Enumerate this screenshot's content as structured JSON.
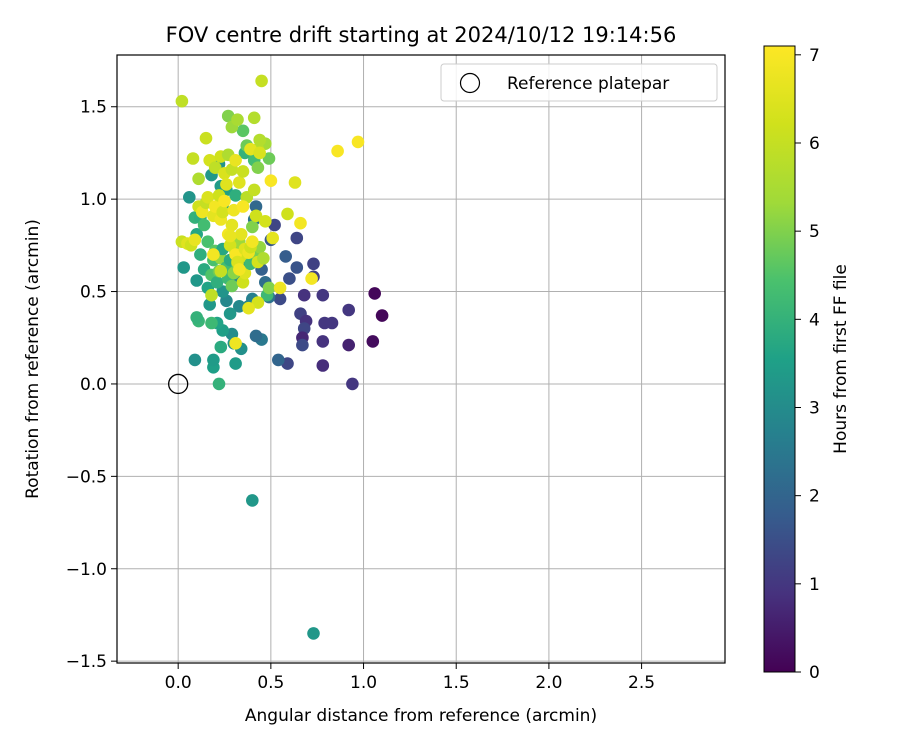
{
  "chart_data": {
    "type": "scatter",
    "title": "FOV centre drift starting at 2024/10/12 19:14:56",
    "xlabel": "Angular distance from reference (arcmin)",
    "ylabel": "Rotation from reference (arcmin)",
    "xlim": [
      -0.33,
      2.95
    ],
    "ylim": [
      -1.51,
      1.78
    ],
    "xticks": [
      0.0,
      0.5,
      1.0,
      1.5,
      2.0,
      2.5
    ],
    "xtick_labels": [
      "0.0",
      "0.5",
      "1.0",
      "1.5",
      "2.0",
      "2.5"
    ],
    "yticks": [
      -1.5,
      -1.0,
      -0.5,
      0.0,
      0.5,
      1.0,
      1.5
    ],
    "ytick_labels": [
      "−1.5",
      "−1.0",
      "−0.5",
      "0.0",
      "0.5",
      "1.0",
      "1.5"
    ],
    "grid": true,
    "legend": {
      "position": "top-right",
      "entries": [
        {
          "label": "Reference platepar",
          "marker": "open-circle",
          "x": 0.0,
          "y": 0.0
        }
      ]
    },
    "colorbar": {
      "label": "Hours from first FF file",
      "min": 0,
      "max": 7.1,
      "ticks": [
        0,
        1,
        2,
        3,
        4,
        5,
        6,
        7
      ],
      "tick_labels": [
        "0",
        "1",
        "2",
        "3",
        "4",
        "5",
        "6",
        "7"
      ],
      "colormap": "viridis"
    },
    "points": [
      [
        1.06,
        0.49,
        0.1
      ],
      [
        1.1,
        0.37,
        0.1
      ],
      [
        1.05,
        0.23,
        0.2
      ],
      [
        0.94,
        0.0,
        1.0
      ],
      [
        0.92,
        0.21,
        0.6
      ],
      [
        0.92,
        0.4,
        1.0
      ],
      [
        0.78,
        0.48,
        1.0
      ],
      [
        0.79,
        0.33,
        1.0
      ],
      [
        0.83,
        0.33,
        1.0
      ],
      [
        0.78,
        0.23,
        0.9
      ],
      [
        0.78,
        0.1,
        0.8
      ],
      [
        0.73,
        0.65,
        1.2
      ],
      [
        0.73,
        0.58,
        1.2
      ],
      [
        0.68,
        0.48,
        0.9
      ],
      [
        0.66,
        0.38,
        1.2
      ],
      [
        0.69,
        0.34,
        0.9
      ],
      [
        0.68,
        0.3,
        1.3
      ],
      [
        0.67,
        0.25,
        0.7
      ],
      [
        0.67,
        0.21,
        1.4
      ],
      [
        0.64,
        0.63,
        1.6
      ],
      [
        0.64,
        0.79,
        1.3
      ],
      [
        0.6,
        0.57,
        1.5
      ],
      [
        0.59,
        0.11,
        1.3
      ],
      [
        0.58,
        0.69,
        1.8
      ],
      [
        0.54,
        0.13,
        2.0
      ],
      [
        0.55,
        0.46,
        1.4
      ],
      [
        0.52,
        0.86,
        1.3
      ],
      [
        0.5,
        0.78,
        1.7
      ],
      [
        0.49,
        0.47,
        2.3
      ],
      [
        0.47,
        0.55,
        2.2
      ],
      [
        0.45,
        0.62,
        1.9
      ],
      [
        0.45,
        0.24,
        2.5
      ],
      [
        0.42,
        0.26,
        2.2
      ],
      [
        0.42,
        0.96,
        2.1
      ],
      [
        0.41,
        0.89,
        2.4
      ],
      [
        0.4,
        0.46,
        2.7
      ],
      [
        0.38,
        0.42,
        2.8
      ],
      [
        0.35,
        0.64,
        2.9
      ],
      [
        0.33,
        0.56,
        3.0
      ],
      [
        0.33,
        0.42,
        2.9
      ],
      [
        0.34,
        0.19,
        3.1
      ],
      [
        0.31,
        0.11,
        3.4
      ],
      [
        0.3,
        0.22,
        3.2
      ],
      [
        0.29,
        0.27,
        3.0
      ],
      [
        0.28,
        0.38,
        3.3
      ],
      [
        0.26,
        0.45,
        2.9
      ],
      [
        0.24,
        0.5,
        3.2
      ],
      [
        0.24,
        0.29,
        3.5
      ],
      [
        0.23,
        0.2,
        3.8
      ],
      [
        0.22,
        0.0,
        4.0
      ],
      [
        0.19,
        0.09,
        3.5
      ],
      [
        0.19,
        0.13,
        3.4
      ],
      [
        0.21,
        0.33,
        3.6
      ],
      [
        0.18,
        0.33,
        4.2
      ],
      [
        0.17,
        0.43,
        3.3
      ],
      [
        0.16,
        0.52,
        3.6
      ],
      [
        0.14,
        0.62,
        3.8
      ],
      [
        0.12,
        0.7,
        3.9
      ],
      [
        0.1,
        0.56,
        3.3
      ],
      [
        0.09,
        0.13,
        3.1
      ],
      [
        0.11,
        0.34,
        4.1
      ],
      [
        0.1,
        0.36,
        4.0
      ],
      [
        0.03,
        0.63,
        3.3
      ],
      [
        0.06,
        1.01,
        3.2
      ],
      [
        0.09,
        0.9,
        4.0
      ],
      [
        0.1,
        0.81,
        3.7
      ],
      [
        0.12,
        0.9,
        3.9
      ],
      [
        0.14,
        0.86,
        4.3
      ],
      [
        0.16,
        0.77,
        4.4
      ],
      [
        0.18,
        0.59,
        4.5
      ],
      [
        0.19,
        0.67,
        4.4
      ],
      [
        0.2,
        0.72,
        4.6
      ],
      [
        0.21,
        0.55,
        3.9
      ],
      [
        0.22,
        0.61,
        4.8
      ],
      [
        0.23,
        0.68,
        5.2
      ],
      [
        0.24,
        0.73,
        3.7
      ],
      [
        0.26,
        0.63,
        4.3
      ],
      [
        0.27,
        0.57,
        4.2
      ],
      [
        0.28,
        0.67,
        3.8
      ],
      [
        0.29,
        0.53,
        4.8
      ],
      [
        0.3,
        0.6,
        5.1
      ],
      [
        0.31,
        0.71,
        5.2
      ],
      [
        0.32,
        0.65,
        4.9
      ],
      [
        0.33,
        0.77,
        5.3
      ],
      [
        0.35,
        0.55,
        6.2
      ],
      [
        0.36,
        0.6,
        6.5
      ],
      [
        0.37,
        0.69,
        6.3
      ],
      [
        0.38,
        0.73,
        5.9
      ],
      [
        0.39,
        0.65,
        4.2
      ],
      [
        0.4,
        0.85,
        5.0
      ],
      [
        0.41,
        0.71,
        4.9
      ],
      [
        0.43,
        0.66,
        6.3
      ],
      [
        0.44,
        0.74,
        5.2
      ],
      [
        0.46,
        0.68,
        5.6
      ],
      [
        0.48,
        0.48,
        4.2
      ],
      [
        0.49,
        0.52,
        5.0
      ],
      [
        0.22,
        1.19,
        3.2
      ],
      [
        0.18,
        1.13,
        3.3
      ],
      [
        0.23,
        1.07,
        3.4
      ],
      [
        0.26,
        1.05,
        3.5
      ],
      [
        0.24,
        0.97,
        3.6
      ],
      [
        0.31,
        1.02,
        3.9
      ],
      [
        0.36,
        1.25,
        4.0
      ],
      [
        0.35,
        1.37,
        4.6
      ],
      [
        0.37,
        1.29,
        4.8
      ],
      [
        0.41,
        1.21,
        4.3
      ],
      [
        0.43,
        1.17,
        5.0
      ],
      [
        0.49,
        1.22,
        4.8
      ],
      [
        0.47,
        1.3,
        5.4
      ],
      [
        0.43,
        1.27,
        5.8
      ],
      [
        0.44,
        1.32,
        5.7
      ],
      [
        0.27,
        1.45,
        5.0
      ],
      [
        0.29,
        1.39,
        5.3
      ],
      [
        0.32,
        1.43,
        5.5
      ],
      [
        0.41,
        1.44,
        5.7
      ],
      [
        0.45,
        1.64,
        6.0
      ],
      [
        0.02,
        1.53,
        5.9
      ],
      [
        0.08,
        1.22,
        6.0
      ],
      [
        0.11,
        1.11,
        5.6
      ],
      [
        0.15,
        1.33,
        6.1
      ],
      [
        0.17,
        1.21,
        6.3
      ],
      [
        0.2,
        1.17,
        5.9
      ],
      [
        0.23,
        1.23,
        6.2
      ],
      [
        0.25,
        1.14,
        6.4
      ],
      [
        0.27,
        1.24,
        5.6
      ],
      [
        0.29,
        1.16,
        6.0
      ],
      [
        0.31,
        1.21,
        6.7
      ],
      [
        0.33,
        1.09,
        6.5
      ],
      [
        0.35,
        1.15,
        6.1
      ],
      [
        0.37,
        1.01,
        5.8
      ],
      [
        0.39,
        1.27,
        6.6
      ],
      [
        0.41,
        1.05,
        6.0
      ],
      [
        0.42,
        0.91,
        6.2
      ],
      [
        0.44,
        1.25,
        6.4
      ],
      [
        0.47,
        0.88,
        6.3
      ],
      [
        0.5,
        1.1,
        7.0
      ],
      [
        0.51,
        0.79,
        6.6
      ],
      [
        0.55,
        0.52,
        6.8
      ],
      [
        0.59,
        0.92,
        6.2
      ],
      [
        0.63,
        1.09,
        6.5
      ],
      [
        0.66,
        0.87,
        6.9
      ],
      [
        0.72,
        0.57,
        6.9
      ],
      [
        0.86,
        1.26,
        7.0
      ],
      [
        0.97,
        1.31,
        7.0
      ],
      [
        0.02,
        0.77,
        6.1
      ],
      [
        0.05,
        0.76,
        6.5
      ],
      [
        0.07,
        0.75,
        6.2
      ],
      [
        0.09,
        0.78,
        6.7
      ],
      [
        0.11,
        0.96,
        6.2
      ],
      [
        0.13,
        0.93,
        6.8
      ],
      [
        0.15,
        0.98,
        6.0
      ],
      [
        0.16,
        1.01,
        6.4
      ],
      [
        0.19,
        0.91,
        6.6
      ],
      [
        0.2,
        0.96,
        6.9
      ],
      [
        0.22,
        1.02,
        6.2
      ],
      [
        0.23,
        0.89,
        6.8
      ],
      [
        0.24,
        0.93,
        6.3
      ],
      [
        0.25,
        0.99,
        7.0
      ],
      [
        0.26,
        1.08,
        6.5
      ],
      [
        0.27,
        0.81,
        6.9
      ],
      [
        0.28,
        0.75,
        6.3
      ],
      [
        0.29,
        0.86,
        6.6
      ],
      [
        0.3,
        0.94,
        6.8
      ],
      [
        0.31,
        0.7,
        7.0
      ],
      [
        0.32,
        0.66,
        6.4
      ],
      [
        0.33,
        0.62,
        6.9
      ],
      [
        0.34,
        0.81,
        6.6
      ],
      [
        0.35,
        0.96,
        7.0
      ],
      [
        0.36,
        0.73,
        6.5
      ],
      [
        0.38,
        0.71,
        6.8
      ],
      [
        0.39,
        0.74,
        6.2
      ],
      [
        0.4,
        0.77,
        6.9
      ],
      [
        0.43,
        0.44,
        6.3
      ],
      [
        0.19,
        0.7,
        6.9
      ],
      [
        0.18,
        0.48,
        5.9
      ],
      [
        0.31,
        0.22,
        6.8
      ],
      [
        0.23,
        0.61,
        6.0
      ],
      [
        0.38,
        0.41,
        6.6
      ],
      [
        0.28,
        0.8,
        6.7
      ],
      [
        0.4,
        -0.63,
        3.3
      ],
      [
        0.73,
        -1.35,
        3.3
      ]
    ]
  }
}
